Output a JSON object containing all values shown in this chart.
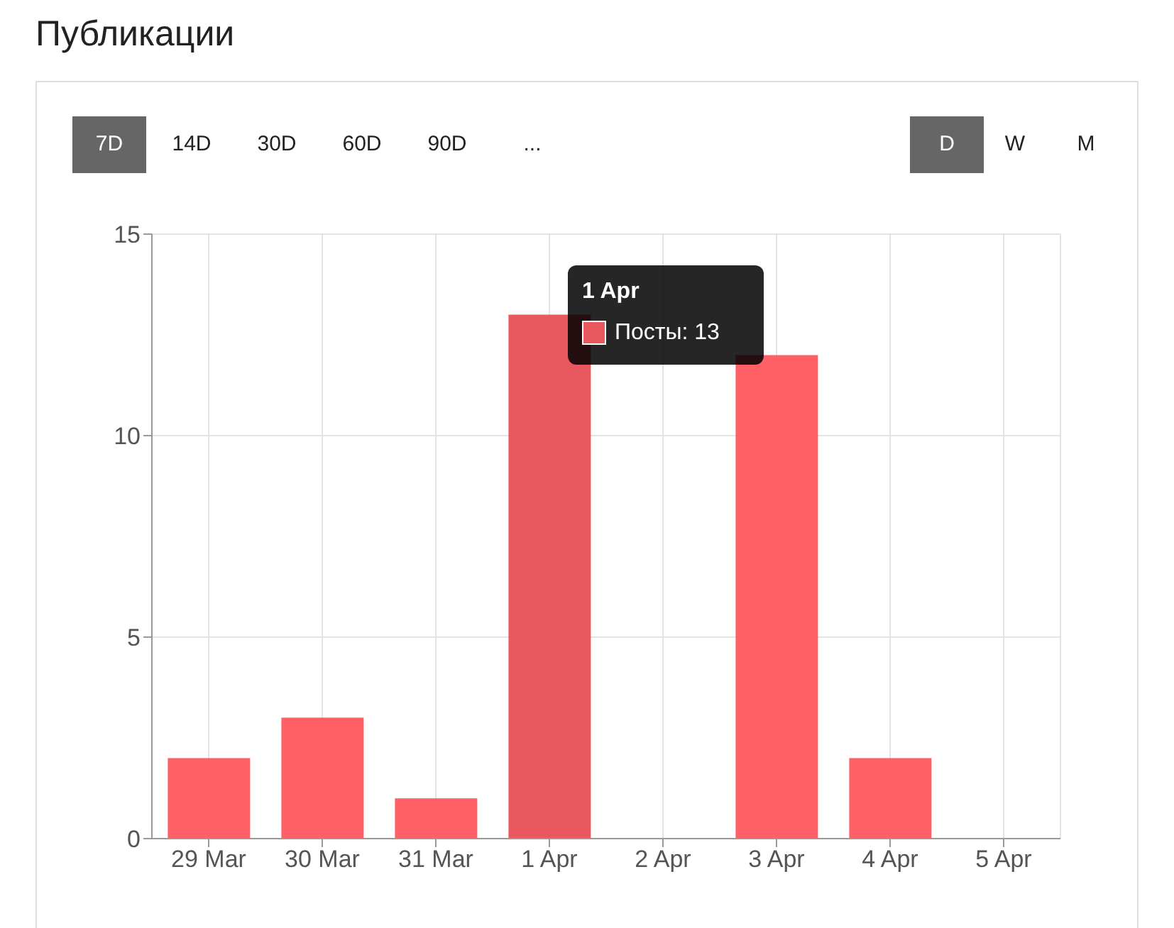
{
  "chart_data": {
    "type": "bar",
    "title": "Публикации",
    "categories": [
      "29 Mar",
      "30 Mar",
      "31 Mar",
      "1 Apr",
      "2 Apr",
      "3 Apr",
      "4 Apr",
      "5 Apr"
    ],
    "series": [
      {
        "values": [
          2,
          3,
          1,
          13,
          0,
          12,
          2,
          0
        ],
        "colors": [
          "#ff6066",
          "#ff6066",
          "#ff6066",
          "#e8585e",
          "#ff6066",
          "#ff6066",
          "#ff6066",
          "#ff6066"
        ]
      }
    ],
    "ylim": [
      0,
      15
    ],
    "yticks": [
      0,
      5,
      10,
      15
    ],
    "grid": true,
    "annotations": [
      "7D",
      "14D",
      "30D",
      "60D",
      "90D",
      "...",
      "D",
      "W",
      "M",
      {
        "text": "1 Apr",
        "x": "1 Apr",
        "y": 13
      },
      {
        "text": "Посты: 13",
        "x": "1 Apr",
        "y": 13
      }
    ]
  }
}
